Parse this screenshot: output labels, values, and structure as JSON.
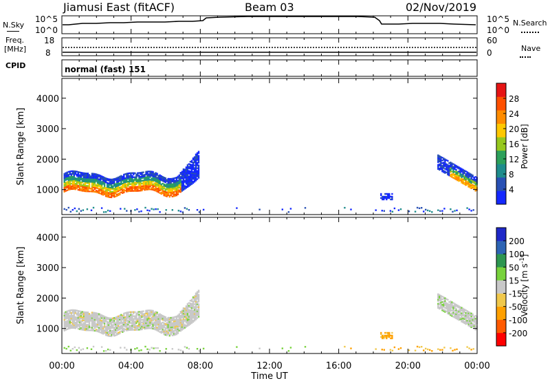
{
  "header": {
    "station": "Jiamusi East (fitACF)",
    "beam": "Beam 03",
    "date": "02/Nov/2019"
  },
  "nsky_panel": {
    "label": "N.Sky",
    "left_ticks": [
      "10^5",
      "10^0"
    ],
    "right_ticks": [
      "10^5",
      "10^0"
    ],
    "right_label": "N.Search"
  },
  "freq_panel": {
    "label_line1": "Freq.",
    "label_line2": "[MHz]",
    "left_ticks": [
      "18",
      "8"
    ],
    "right_ticks": [
      "60",
      "0"
    ],
    "right_label": "Nave"
  },
  "cpid": {
    "label": "CPID",
    "value": "normal (fast) 151"
  },
  "colors": {
    "power": [
      "#1428ff",
      "#2850b4",
      "#1e8c8c",
      "#2ca05a",
      "#96c81e",
      "#ffc800",
      "#ff8c00",
      "#ff5000",
      "#e61414"
    ],
    "velocity": [
      "#ff0000",
      "#ff5a00",
      "#ffa000",
      "#f0c84b",
      "#c8c8c8",
      "#78d23c",
      "#2d9650",
      "#2d64b4",
      "#1e28c8"
    ]
  },
  "chart_data": [
    {
      "type": "heatmap",
      "name": "power-panel",
      "xlabel": "",
      "ylabel": "Slant Range [km]",
      "yticks": [
        1000,
        2000,
        3000,
        4000
      ],
      "ylim": [
        180,
        4650
      ],
      "xlim_hours": [
        0,
        24
      ],
      "colorbar": {
        "label": "Power [dB]",
        "ticks": [
          "4",
          "8",
          "12",
          "16",
          "20",
          "24",
          "28"
        ],
        "range": [
          0,
          32
        ]
      }
    },
    {
      "type": "heatmap",
      "name": "velocity-panel",
      "xlabel": "Time UT",
      "ylabel": "Slant Range [km]",
      "yticks": [
        1000,
        2000,
        3000,
        4000
      ],
      "ylim": [
        180,
        4650
      ],
      "xlim_hours": [
        0,
        24
      ],
      "xticks": [
        "00:00",
        "04:00",
        "08:00",
        "12:00",
        "16:00",
        "20:00",
        "00:00"
      ],
      "colorbar": {
        "label": "Velocity [m s^-1]",
        "ticks": [
          "-200",
          "-100",
          "-50",
          "-15",
          "15",
          "50",
          "100",
          "200"
        ]
      }
    }
  ]
}
